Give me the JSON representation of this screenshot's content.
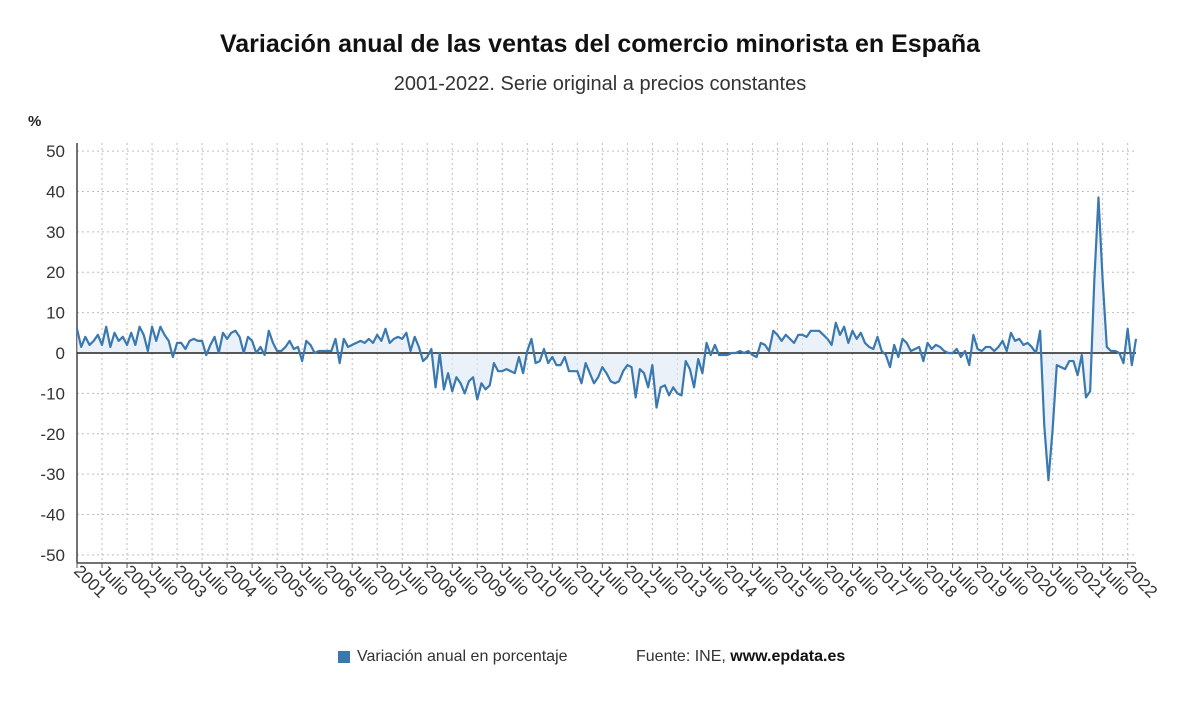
{
  "header": {
    "title": "Variación anual de las ventas del comercio minorista en España",
    "subtitle": "2001-2022. Serie original a precios constantes",
    "unit": "%"
  },
  "legend": {
    "label": "Variación anual en porcentaje",
    "color": "#3a78b0"
  },
  "source": {
    "prefix": "Fuente: INE, ",
    "site": "www.epdata.es"
  },
  "chart_data": {
    "type": "area",
    "ylim": [
      -52,
      52
    ],
    "yticks": [
      50,
      40,
      30,
      20,
      10,
      0,
      -10,
      -20,
      -30,
      -40,
      -50
    ],
    "grid": true,
    "legend_position": "bottom",
    "xticks": [
      "2001",
      "Julio",
      "2002",
      "Julio",
      "2003",
      "Julio",
      "2004",
      "Julio",
      "2005",
      "Julio",
      "2006",
      "Julio",
      "2007",
      "Julio",
      "2008",
      "Julio",
      "2009",
      "Julio",
      "2010",
      "Julio",
      "2011",
      "Julio",
      "2012",
      "Julio",
      "2013",
      "Julio",
      "2014",
      "Julio",
      "2015",
      "Julio",
      "2016",
      "Julio",
      "2017",
      "Julio",
      "2018",
      "Julio",
      "2019",
      "Julio",
      "2020",
      "Julio",
      "2021",
      "Julio",
      "2022"
    ],
    "series": [
      {
        "name": "Variación anual en porcentaje",
        "color": "#3a78b0",
        "start": "2001-01",
        "values": [
          6,
          1.5,
          4,
          2,
          3,
          4.5,
          2,
          6.5,
          1.5,
          5,
          3,
          4,
          2,
          5,
          2,
          6.5,
          4.5,
          0.5,
          6.5,
          3,
          6.5,
          4.5,
          3,
          -1,
          2.5,
          2.5,
          1,
          3,
          3.5,
          3,
          3,
          -0.5,
          2,
          4,
          0,
          5,
          3.5,
          5,
          5.5,
          4,
          0,
          4,
          3,
          0,
          1.5,
          -0.5,
          5.5,
          2.5,
          0.5,
          0.5,
          1.5,
          3,
          1,
          1.5,
          -2,
          3,
          2,
          0,
          0.5,
          0.5,
          0.5,
          0.5,
          3.5,
          -2.5,
          3.5,
          1.5,
          2,
          2.5,
          3,
          2.5,
          3.5,
          2.5,
          4.5,
          3,
          6,
          2.5,
          3.5,
          4,
          3.5,
          5,
          0.5,
          4,
          1.5,
          -2,
          -1,
          1,
          -8.5,
          0,
          -9,
          -5,
          -9.5,
          -6,
          -7.5,
          -10,
          -7,
          -6,
          -11.5,
          -7.5,
          -9,
          -8,
          -2.5,
          -4.5,
          -4.5,
          -4,
          -4.5,
          -5,
          -1,
          -5,
          0.5,
          3.5,
          -2.5,
          -2,
          1,
          -2.5,
          -1,
          -3,
          -3,
          -1,
          -4.5,
          -4.5,
          -4.5,
          -7.5,
          -2.5,
          -5,
          -7.5,
          -6,
          -3.5,
          -5,
          -7,
          -7.5,
          -7,
          -4.5,
          -3,
          -3.5,
          -11,
          -4,
          -5,
          -8.5,
          -3,
          -13.5,
          -8.5,
          -8,
          -10.5,
          -8.5,
          -10,
          -10.5,
          -2,
          -4,
          -8.5,
          -1.5,
          -5,
          2.5,
          -0.5,
          2,
          -0.5,
          -0.5,
          -0.5,
          0,
          0,
          0.5,
          0,
          0.5,
          -0.5,
          -1,
          2.5,
          2,
          0.5,
          5.5,
          4.5,
          3,
          4.5,
          3.5,
          2.5,
          4.5,
          4.5,
          4,
          5.5,
          5.5,
          5.5,
          4.5,
          3.5,
          2,
          7.5,
          4.5,
          6.5,
          2.5,
          5.5,
          3.5,
          5,
          2.5,
          1.5,
          1,
          4,
          0.5,
          -0.5,
          -3.5,
          2,
          -1,
          3.5,
          2.5,
          0.5,
          1,
          1.5,
          -2,
          2.5,
          1,
          2,
          1.5,
          0.5,
          0,
          0,
          1,
          -1,
          0.5,
          -3,
          4.5,
          1,
          0.5,
          1.5,
          1.5,
          0.5,
          1.5,
          3,
          0.5,
          5,
          3,
          3.5,
          2,
          2.5,
          1.5,
          0,
          5.5,
          -18,
          -31.5,
          -19,
          -3,
          -3.5,
          -4,
          -2,
          -2,
          -5.5,
          -0.5,
          -11,
          -9.5,
          18,
          38.5,
          18,
          1.5,
          0.5,
          0.5,
          0,
          -2.5,
          6,
          -3,
          3.5
        ]
      }
    ]
  }
}
